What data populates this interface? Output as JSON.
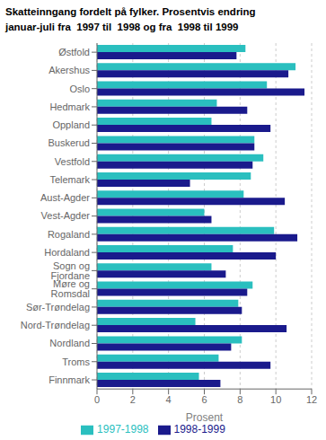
{
  "chart_data": {
    "type": "bar",
    "orientation": "horizontal",
    "title": "Skatteinngang fordelt på fylker. Prosentvis endring",
    "subtitle": "januar-juli fra  1997 til  1998 og fra  1998 til 1999",
    "categories": [
      "Østfold",
      "Akershus",
      "Oslo",
      "Hedmark",
      "Oppland",
      "Buskerud",
      "Vestfold",
      "Telemark",
      "Aust-Agder",
      "Vest-Agder",
      "Rogaland",
      "Hordaland",
      "Sogn og Fjordane",
      "Møre og Romsdal",
      "Sør-Trøndelag",
      "Nord-Trøndelag",
      "Nordland",
      "Troms",
      "Finnmark"
    ],
    "series": [
      {
        "name": "1997-1998",
        "color": "#2abfbf",
        "values": [
          8.3,
          11.1,
          9.5,
          6.7,
          6.4,
          8.8,
          9.3,
          8.6,
          8.2,
          6.0,
          9.9,
          7.6,
          6.4,
          8.7,
          7.9,
          5.5,
          8.1,
          6.8,
          5.7
        ]
      },
      {
        "name": "1998-1999",
        "color": "#1a1a8c",
        "values": [
          7.8,
          10.7,
          11.6,
          8.4,
          9.7,
          8.8,
          8.7,
          5.2,
          10.5,
          6.4,
          11.2,
          10.0,
          7.2,
          8.4,
          8.1,
          10.6,
          7.5,
          9.7,
          6.9
        ]
      }
    ],
    "xlabel": "Prosent",
    "xlim": [
      0,
      12
    ],
    "xticks": [
      0,
      2,
      4,
      6,
      8,
      10,
      12
    ],
    "grid": true,
    "legend": "bottom"
  }
}
